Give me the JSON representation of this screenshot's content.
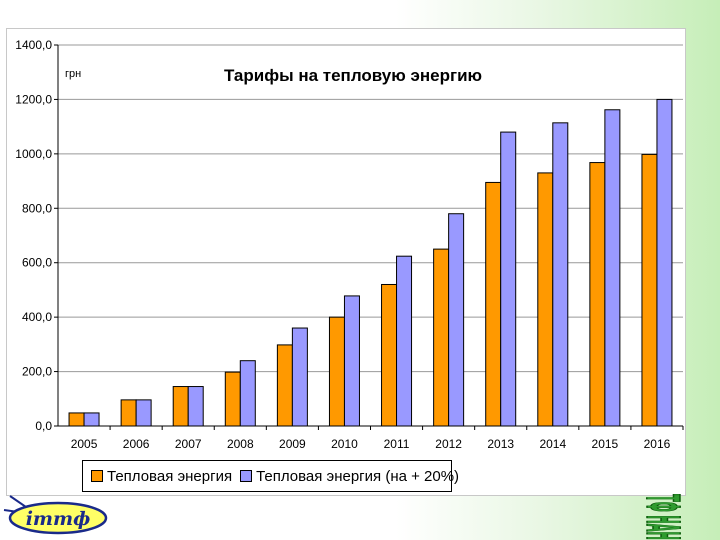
{
  "colors": {
    "series1": "#ff9900",
    "series2": "#9999ff",
    "grid": "#999999",
    "logo_green": "#2f9b2f",
    "logo_yellow": "#ffff66",
    "logo_blue": "#1a2a8a"
  },
  "logos": {
    "left_text": "ітmф",
    "right_text": "ІТТФ НАНУ"
  },
  "chart_data": {
    "type": "bar",
    "title": "Тарифы  на  тепловую  энергию",
    "unit_label": "грн",
    "categories": [
      "2005",
      "2006",
      "2007",
      "2008",
      "2009",
      "2010",
      "2011",
      "2012",
      "2013",
      "2014",
      "2015",
      "2016"
    ],
    "series": [
      {
        "name": "Тепловая энергия",
        "values": [
          48,
          96,
          145,
          198,
          298,
          400,
          520,
          650,
          895,
          930,
          968,
          998
        ]
      },
      {
        "name": "Тепловая энергия (на + 20%)",
        "values": [
          48,
          96,
          145,
          240,
          360,
          478,
          624,
          780,
          1080,
          1114,
          1162,
          1200
        ]
      }
    ],
    "ylim": [
      0,
      1400
    ],
    "yticks": [
      "0,0",
      "200,0",
      "400,0",
      "600,0",
      "800,0",
      "1000,0",
      "1200,0",
      "1400,0"
    ],
    "grid": true,
    "legend_position": "bottom"
  }
}
